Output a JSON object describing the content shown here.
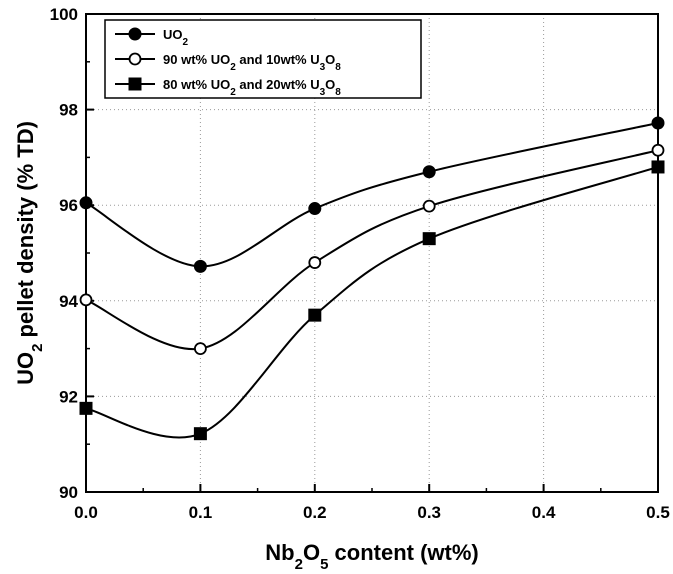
{
  "chart_data": {
    "type": "line",
    "xlabel": "Nb2O5 content (wt%)",
    "ylabel": "UO2 pellet density (% TD)",
    "xlim": [
      0.0,
      0.5
    ],
    "ylim": [
      90,
      100
    ],
    "xticks": [
      "0.0",
      "0.1",
      "0.2",
      "0.3",
      "0.4",
      "0.5"
    ],
    "yticks": [
      "90",
      "92",
      "94",
      "96",
      "98",
      "100"
    ],
    "grid": true,
    "legend_position": "top-left",
    "series": [
      {
        "name": "UO2",
        "marker": "filled-circle",
        "x": [
          0.0,
          0.1,
          0.2,
          0.3,
          0.5
        ],
        "y": [
          96.05,
          94.72,
          95.93,
          96.7,
          97.72
        ]
      },
      {
        "name": "90 wt% UO2 and 10wt% U3O8",
        "marker": "open-circle",
        "x": [
          0.0,
          0.1,
          0.2,
          0.3,
          0.5
        ],
        "y": [
          94.02,
          93.0,
          94.8,
          95.98,
          97.15
        ]
      },
      {
        "name": "80 wt% UO2 and 20wt% U3O8",
        "marker": "filled-square",
        "x": [
          0.0,
          0.1,
          0.2,
          0.3,
          0.5
        ],
        "y": [
          91.75,
          91.22,
          93.7,
          95.3,
          96.8
        ]
      }
    ]
  }
}
